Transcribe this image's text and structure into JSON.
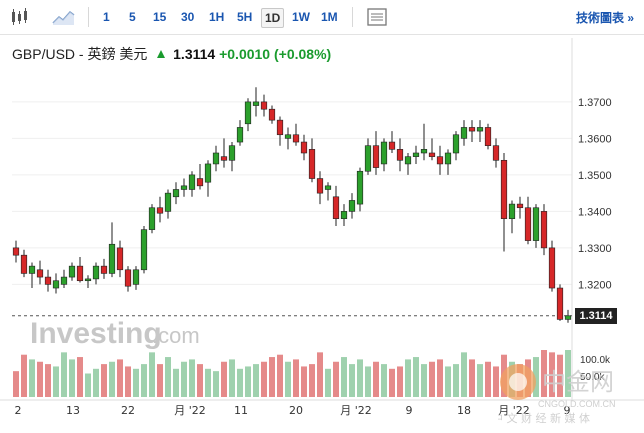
{
  "toolbar": {
    "icons": [
      "candlestick-chart-icon",
      "area-chart-icon",
      "settings-panel-icon"
    ],
    "timeframes": [
      "1",
      "5",
      "15",
      "30",
      "1H",
      "5H",
      "1D",
      "1W",
      "1M"
    ],
    "active_timeframe": "1D",
    "tech_link": "技術圖表 »"
  },
  "header": {
    "pair": "GBP/USD - 英鎊 美元",
    "price": "1.3114",
    "change": "+0.0010",
    "change_pct": "(+0.08%)"
  },
  "colors": {
    "up": "#2ca02c",
    "down": "#d62728",
    "vol_up": "#9fd1ae",
    "vol_down": "#e58a8a"
  },
  "chart_data": {
    "type": "candlestick",
    "y_ticks": [
      "1.3700",
      "1.3600",
      "1.3500",
      "1.3400",
      "1.3300",
      "1.3200"
    ],
    "ylim": [
      1.3075,
      1.376
    ],
    "x_ticks": [
      "2",
      "13",
      "22",
      "月 '22",
      "11",
      "20",
      "月 '22",
      "9",
      "18",
      "月 '22",
      "9"
    ],
    "last_price_label": "1.3114",
    "volume_labels": [
      "100.0k",
      "50.0k"
    ],
    "ohlc": [
      [
        1.33,
        1.332,
        1.326,
        1.328
      ],
      [
        1.328,
        1.3295,
        1.322,
        1.323
      ],
      [
        1.323,
        1.326,
        1.319,
        1.325
      ],
      [
        1.324,
        1.3265,
        1.32,
        1.322
      ],
      [
        1.322,
        1.324,
        1.318,
        1.32
      ],
      [
        1.319,
        1.323,
        1.3175,
        1.321
      ],
      [
        1.32,
        1.324,
        1.319,
        1.322
      ],
      [
        1.322,
        1.326,
        1.321,
        1.325
      ],
      [
        1.325,
        1.3275,
        1.3205,
        1.321
      ],
      [
        1.321,
        1.3225,
        1.319,
        1.3215
      ],
      [
        1.3215,
        1.326,
        1.32,
        1.325
      ],
      [
        1.325,
        1.327,
        1.3215,
        1.323
      ],
      [
        1.323,
        1.337,
        1.322,
        1.331
      ],
      [
        1.33,
        1.332,
        1.322,
        1.324
      ],
      [
        1.324,
        1.325,
        1.318,
        1.3195
      ],
      [
        1.32,
        1.325,
        1.3185,
        1.324
      ],
      [
        1.324,
        1.336,
        1.323,
        1.335
      ],
      [
        1.335,
        1.342,
        1.334,
        1.341
      ],
      [
        1.341,
        1.344,
        1.337,
        1.3395
      ],
      [
        1.34,
        1.346,
        1.338,
        1.345
      ],
      [
        1.344,
        1.348,
        1.342,
        1.346
      ],
      [
        1.346,
        1.349,
        1.344,
        1.347
      ],
      [
        1.346,
        1.351,
        1.344,
        1.35
      ],
      [
        1.349,
        1.353,
        1.346,
        1.347
      ],
      [
        1.348,
        1.354,
        1.344,
        1.353
      ],
      [
        1.353,
        1.358,
        1.351,
        1.356
      ],
      [
        1.355,
        1.36,
        1.352,
        1.354
      ],
      [
        1.354,
        1.359,
        1.351,
        1.358
      ],
      [
        1.359,
        1.365,
        1.358,
        1.363
      ],
      [
        1.364,
        1.371,
        1.362,
        1.37
      ],
      [
        1.369,
        1.374,
        1.366,
        1.37
      ],
      [
        1.37,
        1.372,
        1.366,
        1.368
      ],
      [
        1.368,
        1.369,
        1.364,
        1.365
      ],
      [
        1.365,
        1.366,
        1.358,
        1.361
      ],
      [
        1.36,
        1.363,
        1.357,
        1.361
      ],
      [
        1.361,
        1.364,
        1.358,
        1.359
      ],
      [
        1.359,
        1.361,
        1.354,
        1.356
      ],
      [
        1.357,
        1.36,
        1.348,
        1.349
      ],
      [
        1.349,
        1.351,
        1.342,
        1.345
      ],
      [
        1.346,
        1.348,
        1.343,
        1.347
      ],
      [
        1.344,
        1.347,
        1.336,
        1.338
      ],
      [
        1.338,
        1.342,
        1.336,
        1.34
      ],
      [
        1.34,
        1.345,
        1.338,
        1.343
      ],
      [
        1.342,
        1.352,
        1.34,
        1.351
      ],
      [
        1.351,
        1.36,
        1.35,
        1.358
      ],
      [
        1.358,
        1.362,
        1.35,
        1.352
      ],
      [
        1.353,
        1.36,
        1.351,
        1.359
      ],
      [
        1.359,
        1.362,
        1.356,
        1.357
      ],
      [
        1.357,
        1.36,
        1.351,
        1.354
      ],
      [
        1.353,
        1.356,
        1.35,
        1.355
      ],
      [
        1.355,
        1.358,
        1.353,
        1.356
      ],
      [
        1.356,
        1.364,
        1.354,
        1.357
      ],
      [
        1.356,
        1.36,
        1.354,
        1.355
      ],
      [
        1.355,
        1.358,
        1.35,
        1.353
      ],
      [
        1.353,
        1.357,
        1.35,
        1.356
      ],
      [
        1.356,
        1.362,
        1.354,
        1.361
      ],
      [
        1.36,
        1.365,
        1.358,
        1.363
      ],
      [
        1.363,
        1.365,
        1.359,
        1.362
      ],
      [
        1.362,
        1.365,
        1.359,
        1.363
      ],
      [
        1.363,
        1.364,
        1.357,
        1.358
      ],
      [
        1.358,
        1.36,
        1.352,
        1.354
      ],
      [
        1.354,
        1.356,
        1.329,
        1.338
      ],
      [
        1.338,
        1.343,
        1.334,
        1.342
      ],
      [
        1.342,
        1.344,
        1.338,
        1.341
      ],
      [
        1.341,
        1.344,
        1.331,
        1.332
      ],
      [
        1.332,
        1.342,
        1.33,
        1.341
      ],
      [
        1.34,
        1.342,
        1.328,
        1.33
      ],
      [
        1.33,
        1.332,
        1.318,
        1.319
      ],
      [
        1.319,
        1.32,
        1.31,
        1.3104
      ],
      [
        1.3104,
        1.313,
        1.3095,
        1.3114
      ]
    ],
    "volume": [
      55,
      90,
      80,
      75,
      70,
      65,
      95,
      80,
      85,
      50,
      60,
      70,
      75,
      80,
      65,
      60,
      70,
      95,
      70,
      85,
      60,
      75,
      80,
      70,
      60,
      55,
      75,
      80,
      60,
      65,
      70,
      75,
      85,
      90,
      75,
      80,
      65,
      70,
      95,
      60,
      75,
      85,
      70,
      80,
      65,
      75,
      70,
      60,
      65,
      80,
      85,
      70,
      75,
      80,
      65,
      70,
      95,
      80,
      70,
      75,
      65,
      90,
      75,
      70,
      80,
      85,
      100,
      95,
      90,
      100
    ]
  },
  "watermark": {
    "brand": "Investing",
    "domain": ".com",
    "cn_title": "中金网",
    "cn_url": "CNGOLD.COM.CN",
    "cn_subtitle": "中 文 财 经 新 媒 体"
  }
}
